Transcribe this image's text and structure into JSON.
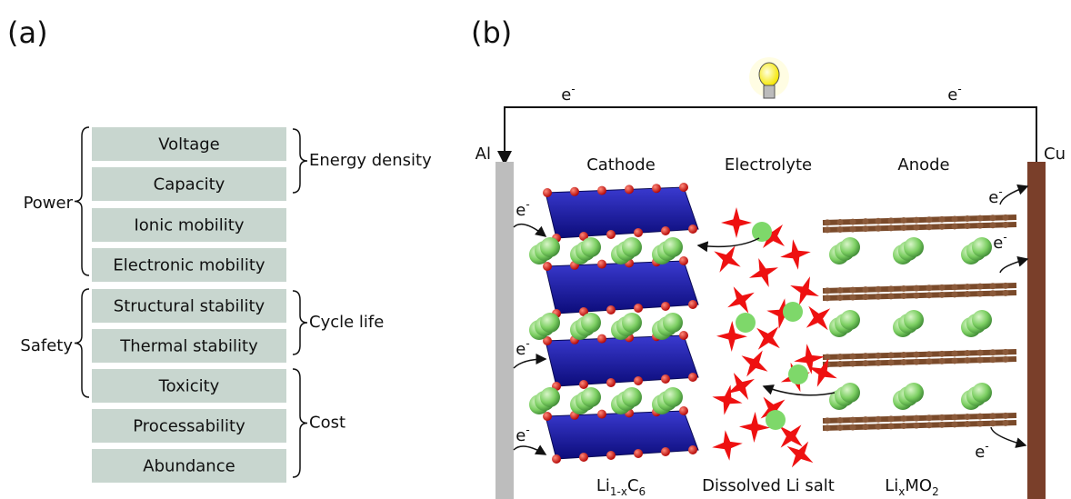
{
  "panel_a": {
    "label": "(a)",
    "properties": [
      "Voltage",
      "Capacity",
      "Ionic mobility",
      "Electronic mobility",
      "Structural stability",
      "Thermal stability",
      "Toxicity",
      "Processability",
      "Abundance"
    ],
    "groups_left": [
      "Power",
      "Safety"
    ],
    "groups_right": [
      "Energy density",
      "Cycle life",
      "Cost"
    ]
  },
  "panel_b": {
    "label": "(b)",
    "collectors": [
      "Al",
      "Cu"
    ],
    "regions": [
      "Cathode",
      "Electrolyte",
      "Anode"
    ],
    "materials": [
      [
        "Li",
        "1-x",
        "C",
        "6"
      ],
      [
        "Dissolved Li salt"
      ],
      [
        "Li",
        "x",
        "MO",
        "2"
      ]
    ],
    "electrons": [
      [
        "e",
        "-"
      ],
      [
        "e",
        "-"
      ],
      [
        "e",
        "-"
      ],
      [
        "e",
        "-"
      ],
      [
        "e",
        "-"
      ],
      [
        "e",
        "-"
      ],
      [
        "e",
        "-"
      ],
      [
        "e",
        "-"
      ]
    ]
  }
}
